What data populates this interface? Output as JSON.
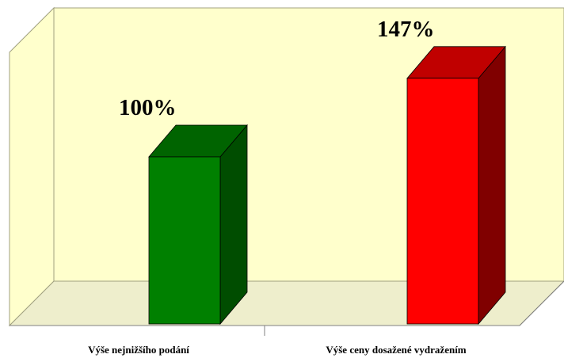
{
  "chart_data": {
    "type": "bar",
    "three_d": true,
    "categories": [
      "Výše nejnižšího podání",
      "Výše ceny dosažené vydražením"
    ],
    "values": [
      100,
      147
    ],
    "value_labels": [
      "100%",
      "147%"
    ],
    "unit": "%",
    "title": "",
    "xlabel": "",
    "ylabel": "",
    "ylim": [
      0,
      180
    ],
    "grid": false,
    "legend": "none",
    "colors": {
      "wall": "#ffffcc",
      "floor": "#eeeecc",
      "wall_edge": "#a0a080",
      "bars": [
        {
          "front": "#008000",
          "top": "#006400",
          "side": "#004d00"
        },
        {
          "front": "#ff0000",
          "top": "#c00000",
          "side": "#800000"
        }
      ]
    }
  }
}
